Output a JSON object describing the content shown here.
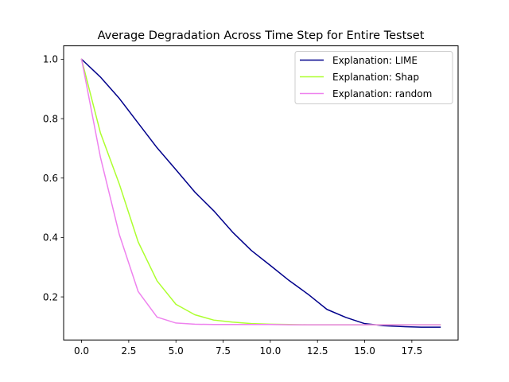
{
  "chart_data": {
    "type": "line",
    "title": "Average Degradation Across Time Step for Entire Testset",
    "xlabel": "",
    "ylabel": "",
    "xlim": [
      -0.95,
      19.95
    ],
    "ylim": [
      0.055,
      1.045
    ],
    "xticks": [
      "0.0",
      "2.5",
      "5.0",
      "7.5",
      "10.0",
      "12.5",
      "15.0",
      "17.5"
    ],
    "yticks": [
      "0.2",
      "0.4",
      "0.6",
      "0.8",
      "1.0"
    ],
    "grid": false,
    "legend_position": "top-right",
    "x": [
      0,
      1,
      2,
      3,
      4,
      5,
      6,
      7,
      8,
      9,
      10,
      11,
      12,
      13,
      14,
      15,
      16,
      17,
      18,
      19
    ],
    "series": [
      {
        "name": "Explanation: LIME",
        "color": "#00008b",
        "values": [
          1.0,
          0.94,
          0.868,
          0.785,
          0.702,
          0.628,
          0.553,
          0.49,
          0.418,
          0.356,
          0.306,
          0.255,
          0.209,
          0.158,
          0.131,
          0.11,
          0.103,
          0.1,
          0.098,
          0.098
        ]
      },
      {
        "name": "Explanation: Shap",
        "color": "#adff2f",
        "values": [
          1.0,
          0.752,
          0.58,
          0.385,
          0.254,
          0.175,
          0.14,
          0.122,
          0.115,
          0.11,
          0.108,
          0.107,
          0.106,
          0.106,
          0.106,
          0.106,
          0.106,
          0.106,
          0.106,
          0.106
        ]
      },
      {
        "name": "Explanation: random",
        "color": "#ee82ee",
        "values": [
          1.0,
          0.67,
          0.41,
          0.218,
          0.132,
          0.112,
          0.108,
          0.107,
          0.107,
          0.107,
          0.107,
          0.106,
          0.106,
          0.106,
          0.106,
          0.106,
          0.106,
          0.106,
          0.106,
          0.106
        ]
      }
    ]
  }
}
